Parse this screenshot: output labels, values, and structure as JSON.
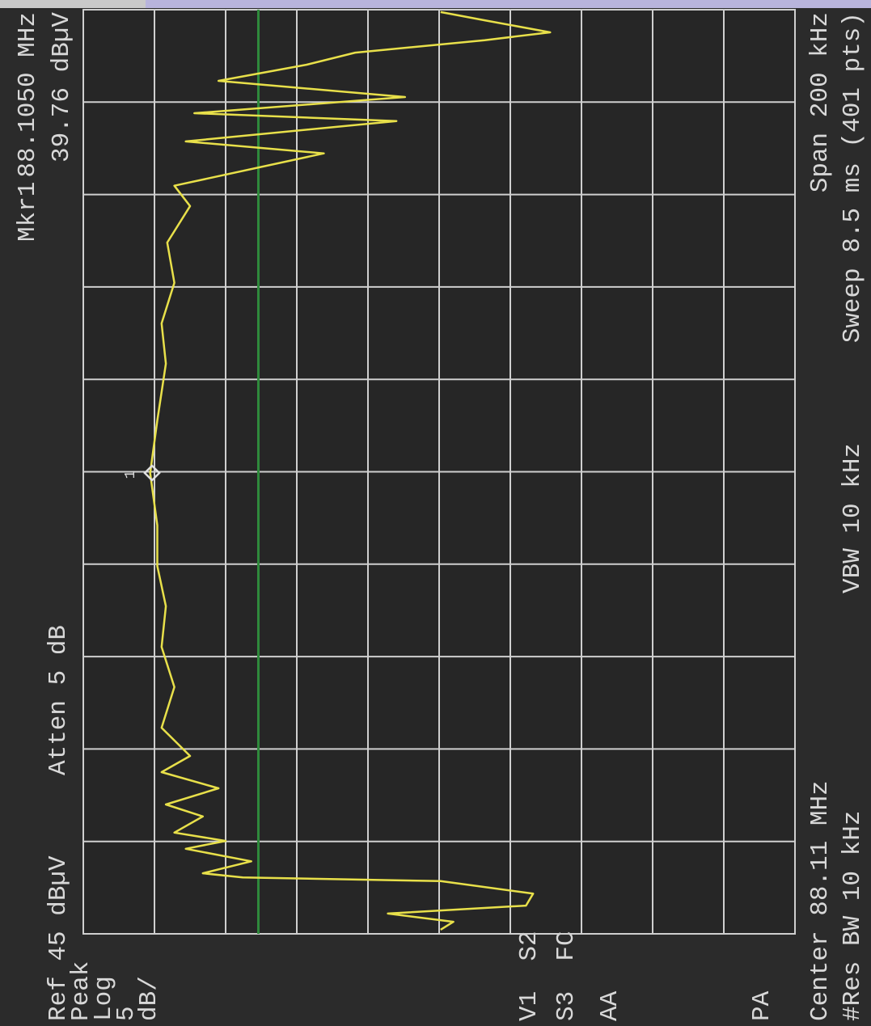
{
  "chart_data": {
    "type": "line",
    "ref_level": "Ref 45 dBµV",
    "attenuation": "Atten 5 dB",
    "marker_label": "Mkr1",
    "marker_frequency": "88.1050 MHz",
    "marker_level": "39.76 dBµV",
    "side_labels": [
      "Peak",
      "Log",
      "5",
      "dB/",
      "V1  S2",
      "S3  FC",
      "AA",
      "PA"
    ],
    "center": "Center 88.11 MHz",
    "span": "Span 200 kHz",
    "rbw": "#Res BW 10 kHz",
    "vbw": "VBW 10 kHz",
    "sweep": "Sweep 8.5 ms (401 pts)",
    "x": [
      88.0109,
      88.0126,
      88.0144,
      88.0161,
      88.0187,
      88.0214,
      88.0222,
      88.0231,
      88.0257,
      88.0284,
      88.0301,
      88.0319,
      88.0354,
      88.038,
      88.0415,
      88.045,
      88.0485,
      88.0546,
      88.0634,
      88.0721,
      88.0809,
      88.0896,
      88.0984,
      88.1097,
      88.1211,
      88.1334,
      88.1421,
      88.1509,
      88.1596,
      88.1675,
      88.1719,
      88.1789,
      88.1815,
      88.1859,
      88.1876,
      88.1911,
      88.1946,
      88.1981,
      88.2007,
      88.2034,
      88.2051,
      88.2077,
      88.2095
    ],
    "values": [
      19.9,
      19,
      23.6,
      13.9,
      13.4,
      19.9,
      33.8,
      36.6,
      33.2,
      37.8,
      35,
      38.6,
      36.6,
      39.2,
      35.5,
      39.5,
      37.5,
      39.5,
      38.6,
      39.5,
      39.2,
      39.8,
      39.8,
      40.3,
      39.8,
      39.2,
      39.5,
      38.6,
      39.1,
      37.5,
      38.6,
      28.1,
      37.8,
      23,
      37.2,
      22.4,
      35.5,
      29.3,
      25.9,
      16.8,
      12.2,
      16.8,
      19.9
    ],
    "color": "#e8e04a",
    "display_line": 32.7,
    "display_line_color": "#2f8a3c",
    "xlim": [
      88.01,
      88.21
    ],
    "xticks": [
      88.01,
      88.03,
      88.05,
      88.07,
      88.09,
      88.11,
      88.13,
      88.15,
      88.17,
      88.19,
      88.21
    ],
    "ylim": [
      -5,
      45
    ],
    "yticks": [
      45,
      40,
      35,
      30,
      25,
      20,
      15,
      10,
      5,
      0,
      -5
    ],
    "grid": true
  }
}
